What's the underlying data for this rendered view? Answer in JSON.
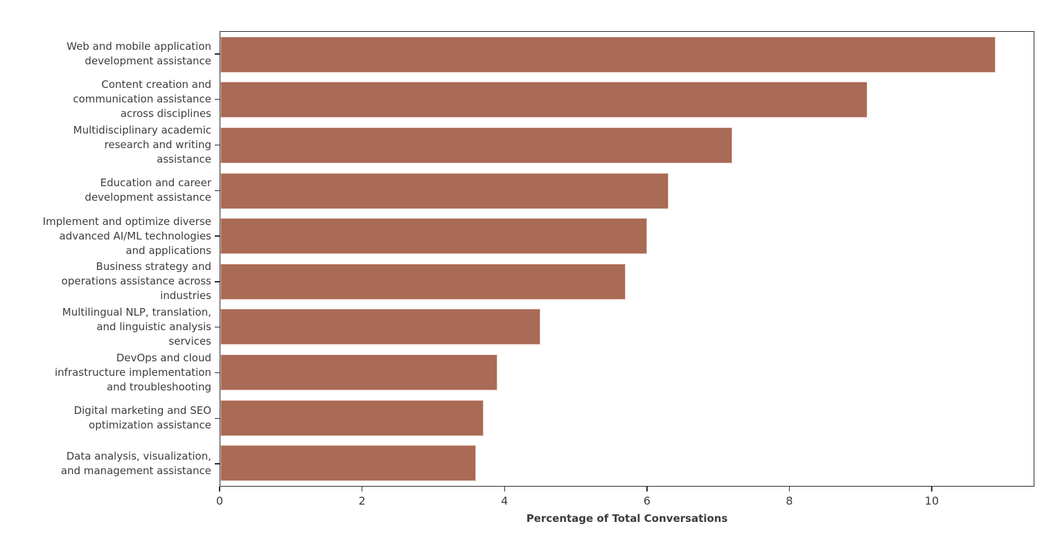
{
  "chart_data": {
    "type": "bar",
    "orientation": "horizontal",
    "title": "",
    "xlabel": "Percentage of Total Conversations",
    "ylabel": "",
    "categories": [
      "Web and mobile application\ndevelopment assistance",
      "Content creation and\ncommunication assistance\nacross disciplines",
      "Multidisciplinary academic\nresearch and writing\nassistance",
      "Education and career\ndevelopment assistance",
      "Implement and optimize diverse\nadvanced AI/ML technologies\nand applications",
      "Business strategy and\noperations assistance across\nindustries",
      "Multilingual NLP, translation,\nand linguistic analysis\nservices",
      "DevOps and cloud\ninfrastructure implementation\nand troubleshooting",
      "Digital marketing and SEO\noptimization assistance",
      "Data analysis, visualization,\nand management assistance"
    ],
    "values": [
      10.9,
      9.1,
      7.2,
      6.3,
      6.0,
      5.7,
      4.5,
      3.9,
      3.7,
      3.6
    ],
    "xlim": [
      0,
      11.44
    ],
    "xticks": [
      0,
      2,
      4,
      6,
      8,
      10
    ],
    "grid": false,
    "legend": null,
    "bar_color": "#a96a56",
    "bar_edge_color": "#e9cdc2",
    "axis_color": "#2b2b2b",
    "text_color": "#3d3d3d"
  }
}
